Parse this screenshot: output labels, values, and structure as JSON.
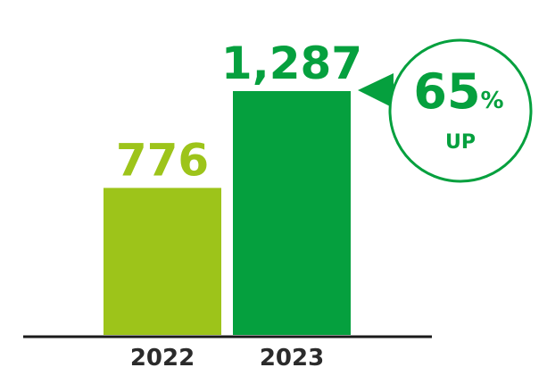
{
  "chart_data": {
    "type": "bar",
    "categories": [
      "2022",
      "2023"
    ],
    "values": [
      776,
      1287
    ],
    "value_labels": [
      "776",
      "1,287"
    ],
    "title": "",
    "xlabel": "",
    "ylabel": "",
    "ylim": [
      0,
      1287
    ],
    "grid": false,
    "legend": "none",
    "bar_colors": [
      "#9dc41a",
      "#05a03e"
    ],
    "axis_color": "#1a1a1a",
    "tick_label_color": "#2b2b2b"
  },
  "callout": {
    "number": "65",
    "unit": "%",
    "sub": "UP",
    "color": "#05a03e",
    "border_color": "#05a03e",
    "background": "#ffffff"
  }
}
